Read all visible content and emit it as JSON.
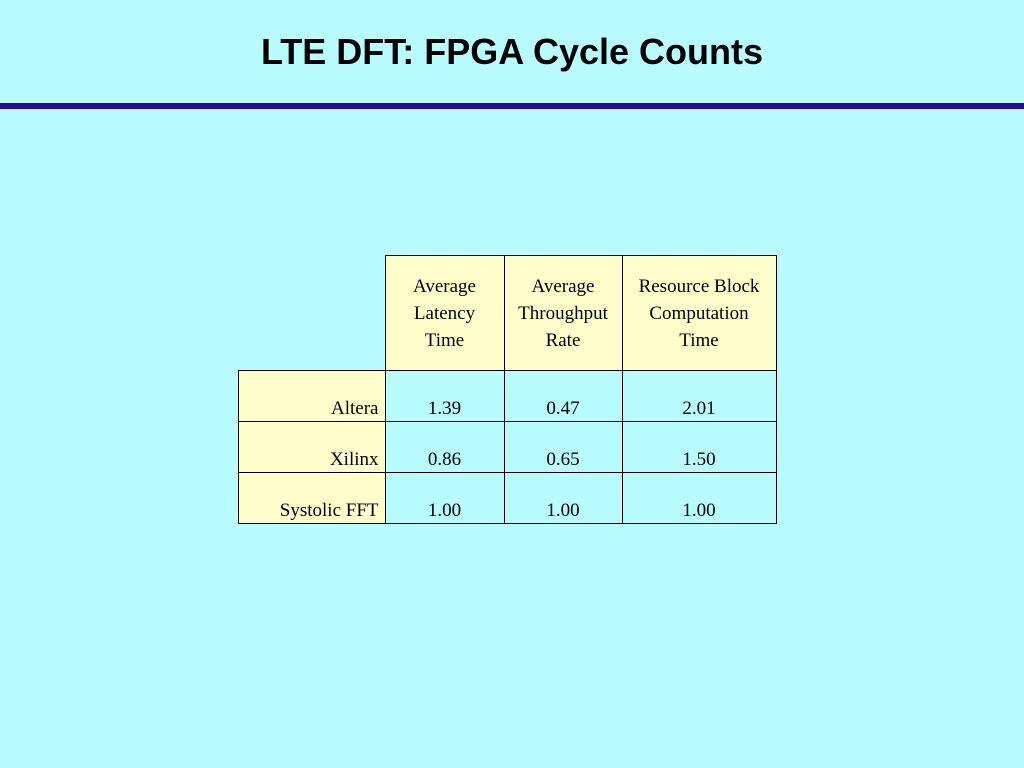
{
  "slide": {
    "title": "LTE DFT: FPGA Cycle Counts"
  },
  "table": {
    "column_headers": [
      [
        "Average",
        "Latency",
        "Time"
      ],
      [
        "Average",
        "Throughput",
        "Rate"
      ],
      [
        "Resource Block",
        "Computation",
        "Time"
      ]
    ],
    "rows": [
      {
        "label": "Altera",
        "values": [
          "1.39",
          "0.47",
          "2.01"
        ]
      },
      {
        "label": "Xilinx",
        "values": [
          "0.86",
          "0.65",
          "1.50"
        ]
      },
      {
        "label": "Systolic FFT",
        "values": [
          "1.00",
          "1.00",
          "1.00"
        ]
      }
    ]
  },
  "colors": {
    "background": "#b8fcff",
    "rule": "#2a0a9a",
    "header_fill": "#ffffcc"
  }
}
